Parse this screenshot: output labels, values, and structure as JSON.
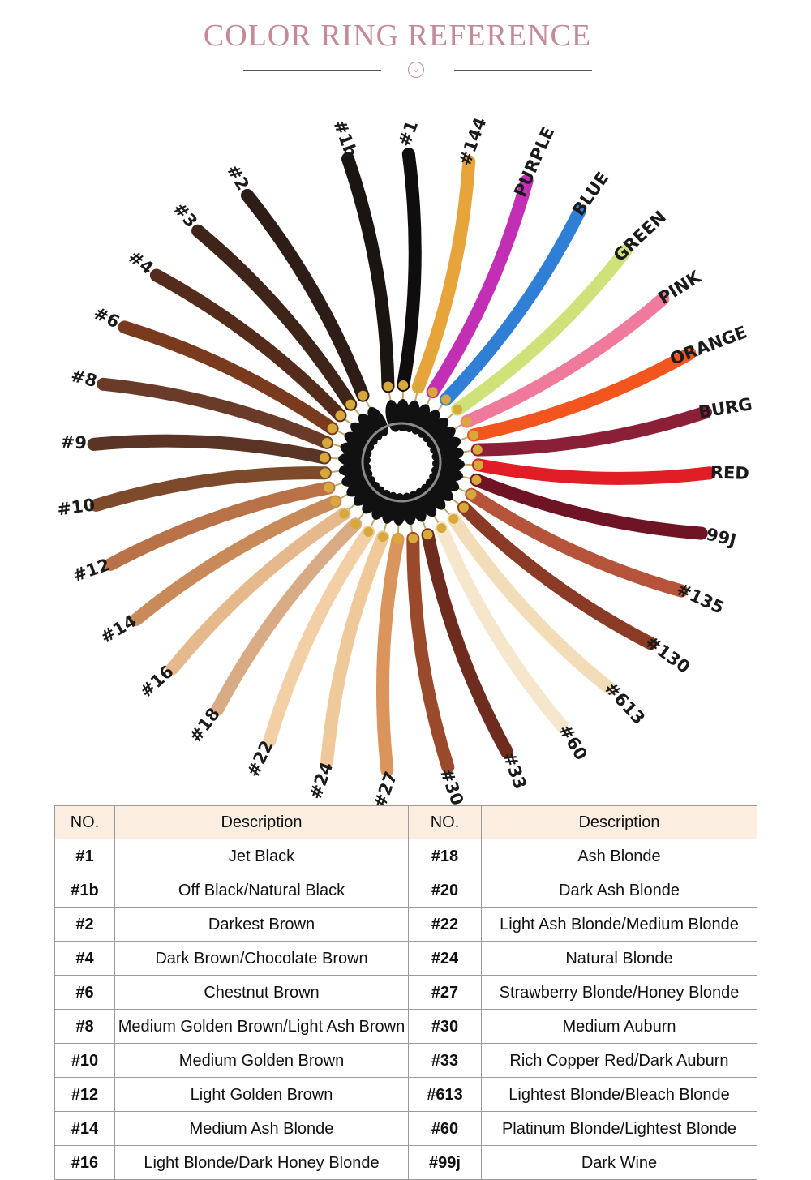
{
  "title": "COLOR RING REFERENCE",
  "swatches": [
    {
      "label": "#1b",
      "color": "#1a1412"
    },
    {
      "label": "#1",
      "color": "#0f0d0d"
    },
    {
      "label": "#144",
      "color": "#e6a43a"
    },
    {
      "label": "PURPLE",
      "color": "#c22fb5"
    },
    {
      "label": "BLUE",
      "color": "#2f7fd6"
    },
    {
      "label": "GREEN",
      "color": "#cfe27a"
    },
    {
      "label": "PINK",
      "color": "#f07a9c"
    },
    {
      "label": "ORANGE",
      "color": "#f2551d"
    },
    {
      "label": "BURG",
      "color": "#8c1f38"
    },
    {
      "label": "RED",
      "color": "#e11d26"
    },
    {
      "label": "99J",
      "color": "#6f1424"
    },
    {
      "label": "#135",
      "color": "#b5543a"
    },
    {
      "label": "#130",
      "color": "#8a3a25"
    },
    {
      "label": "#613",
      "color": "#f2ddb8"
    },
    {
      "label": "#60",
      "color": "#f6e6cc"
    },
    {
      "label": "#33",
      "color": "#6e2c1f"
    },
    {
      "label": "#30",
      "color": "#9a4a2a"
    },
    {
      "label": "#27",
      "color": "#d9955c"
    },
    {
      "label": "#24",
      "color": "#f0c99a"
    },
    {
      "label": "#22",
      "color": "#f3cfa6"
    },
    {
      "label": "#18",
      "color": "#d8ab84"
    },
    {
      "label": "#16",
      "color": "#e5b98c"
    },
    {
      "label": "#14",
      "color": "#c98a5a"
    },
    {
      "label": "#12",
      "color": "#b97248"
    },
    {
      "label": "#10",
      "color": "#7d4a2c"
    },
    {
      "label": "#9",
      "color": "#5a3424"
    },
    {
      "label": "#8",
      "color": "#6a3b28"
    },
    {
      "label": "#6",
      "color": "#7a3a1e"
    },
    {
      "label": "#4",
      "color": "#552c1c"
    },
    {
      "label": "#3",
      "color": "#3e2419"
    },
    {
      "label": "#2",
      "color": "#2e1c16"
    }
  ],
  "table": {
    "headers": [
      "NO.",
      "Description",
      "NO.",
      "Description"
    ],
    "rows": [
      {
        "no1": "#1",
        "desc1": "Jet Black",
        "no2": "#18",
        "desc2": "Ash Blonde"
      },
      {
        "no1": "#1b",
        "desc1": "Off Black/Natural Black",
        "no2": "#20",
        "desc2": "Dark Ash Blonde"
      },
      {
        "no1": "#2",
        "desc1": "Darkest Brown",
        "no2": "#22",
        "desc2": "Light Ash Blonde/Medium Blonde"
      },
      {
        "no1": "#4",
        "desc1": "Dark Brown/Chocolate Brown",
        "no2": "#24",
        "desc2": "Natural Blonde"
      },
      {
        "no1": "#6",
        "desc1": "Chestnut Brown",
        "no2": "#27",
        "desc2": "Strawberry Blonde/Honey Blonde"
      },
      {
        "no1": "#8",
        "desc1": "Medium Golden Brown/Light Ash Brown",
        "no2": "#30",
        "desc2": "Medium Auburn"
      },
      {
        "no1": "#10",
        "desc1": "Medium Golden Brown",
        "no2": "#33",
        "desc2": "Rich Copper Red/Dark Auburn"
      },
      {
        "no1": "#12",
        "desc1": "Light Golden Brown",
        "no2": "#613",
        "desc2": "Lightest Blonde/Bleach Blonde"
      },
      {
        "no1": "#14",
        "desc1": "Medium Ash Blonde",
        "no2": "#60",
        "desc2": "Platinum Blonde/Lightest Blonde"
      },
      {
        "no1": "#16",
        "desc1": "Light Blonde/Dark Honey Blonde",
        "no2": "#99j",
        "desc2": "Dark Wine"
      }
    ]
  }
}
